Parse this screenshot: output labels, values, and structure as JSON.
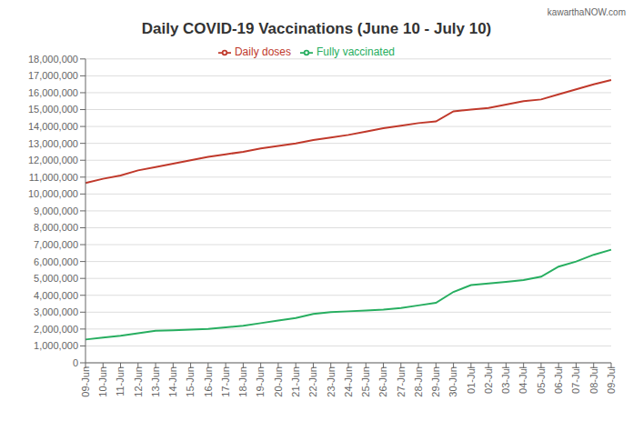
{
  "chart_data": {
    "type": "line",
    "title": "Daily COVID-19 Vaccinations (June 10 - July 10)",
    "annotations": [
      "kawarthaNOW.com"
    ],
    "categories": [
      "09-Jun",
      "10-Jun",
      "11-Jun",
      "12-Jun",
      "13-Jun",
      "14-Jun",
      "15-Jun",
      "16-Jun",
      "17-Jun",
      "18-Jun",
      "19-Jun",
      "20-Jun",
      "21-Jun",
      "22-Jun",
      "23-Jun",
      "24-Jun",
      "25-Jun",
      "26-Jun",
      "27-Jun",
      "28-Jun",
      "29-Jun",
      "30-Jun",
      "01-Jul",
      "02-Jul",
      "03-Jul",
      "04-Jul",
      "05-Jul",
      "06-Jul",
      "07-Jul",
      "08-Jul",
      "09-Jul"
    ],
    "series": [
      {
        "name": "Daily doses",
        "color": "#c0392b",
        "values": [
          10650000,
          10900000,
          11100000,
          11400000,
          11600000,
          11800000,
          12000000,
          12200000,
          12350000,
          12500000,
          12700000,
          12850000,
          13000000,
          13200000,
          13350000,
          13500000,
          13700000,
          13900000,
          14050000,
          14200000,
          14300000,
          14900000,
          15000000,
          15100000,
          15300000,
          15500000,
          15600000,
          15900000,
          16200000,
          16500000,
          16750000
        ]
      },
      {
        "name": "Fully vaccinated",
        "color": "#27ae60",
        "values": [
          1380000,
          1500000,
          1600000,
          1750000,
          1900000,
          1930000,
          1970000,
          2000000,
          2100000,
          2200000,
          2350000,
          2500000,
          2650000,
          2900000,
          3000000,
          3050000,
          3100000,
          3150000,
          3250000,
          3400000,
          3550000,
          4200000,
          4600000,
          4700000,
          4800000,
          4900000,
          5100000,
          5700000,
          6000000,
          6400000,
          6700000
        ]
      }
    ],
    "ylim": [
      0,
      18000000
    ],
    "yticks": [
      0,
      {
        "value": 1000000,
        "label": "1,000,000"
      },
      {
        "value": 2000000,
        "label": "2,000,000"
      },
      {
        "value": 3000000,
        "label": "3,000,000"
      },
      {
        "value": 4000000,
        "label": "4,000,000"
      },
      {
        "value": 5000000,
        "label": "5,000,000"
      },
      {
        "value": 6000000,
        "label": "6,000,000"
      },
      {
        "value": 7000000,
        "label": "7,000,000"
      },
      {
        "value": 8000000,
        "label": "8,000,000"
      },
      {
        "value": 9000000,
        "label": "9,000,000"
      },
      {
        "value": 10000000,
        "label": "10,000,000"
      },
      {
        "value": 11000000,
        "label": "11,000,000"
      },
      {
        "value": 12000000,
        "label": "12,000,000"
      },
      {
        "value": 13000000,
        "label": "13,000,000"
      },
      {
        "value": 14000000,
        "label": "14,000,000"
      },
      {
        "value": 15000000,
        "label": "15,000,000"
      },
      {
        "value": 16000000,
        "label": "16,000,000"
      },
      {
        "value": 17000000,
        "label": "17,000,000"
      },
      {
        "value": 18000000,
        "label": "18,000,000"
      }
    ],
    "grid": true,
    "legend": "top"
  }
}
